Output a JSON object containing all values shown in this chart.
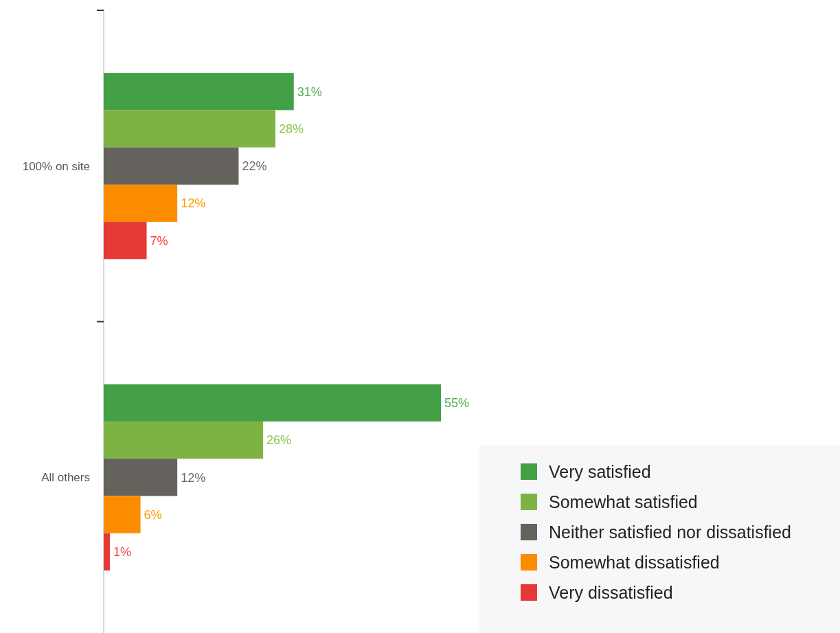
{
  "chart_data": {
    "type": "bar",
    "orientation": "horizontal",
    "categories": [
      "100% on site",
      "All others"
    ],
    "series": [
      {
        "name": "Very satisfied",
        "color": "#43a047",
        "values": [
          31,
          55
        ],
        "value_labels": [
          "31%",
          "55%"
        ]
      },
      {
        "name": "Somewhat satisfied",
        "color": "#7cb342",
        "values": [
          28,
          26
        ],
        "value_labels": [
          "28%",
          "26%"
        ]
      },
      {
        "name": "Neither satisfied nor dissatisfied",
        "color": "#65625e",
        "values": [
          22,
          12
        ],
        "value_labels": [
          "22%",
          "12%"
        ]
      },
      {
        "name": "Somewhat dissatisfied",
        "color": "#fb8c00",
        "values": [
          12,
          6
        ],
        "value_labels": [
          "12%",
          "6%"
        ]
      },
      {
        "name": "Very dissatisfied",
        "color": "#e53935",
        "values": [
          7,
          1
        ],
        "value_labels": [
          "7%",
          "1%"
        ]
      }
    ],
    "legend": "bottom right"
  }
}
